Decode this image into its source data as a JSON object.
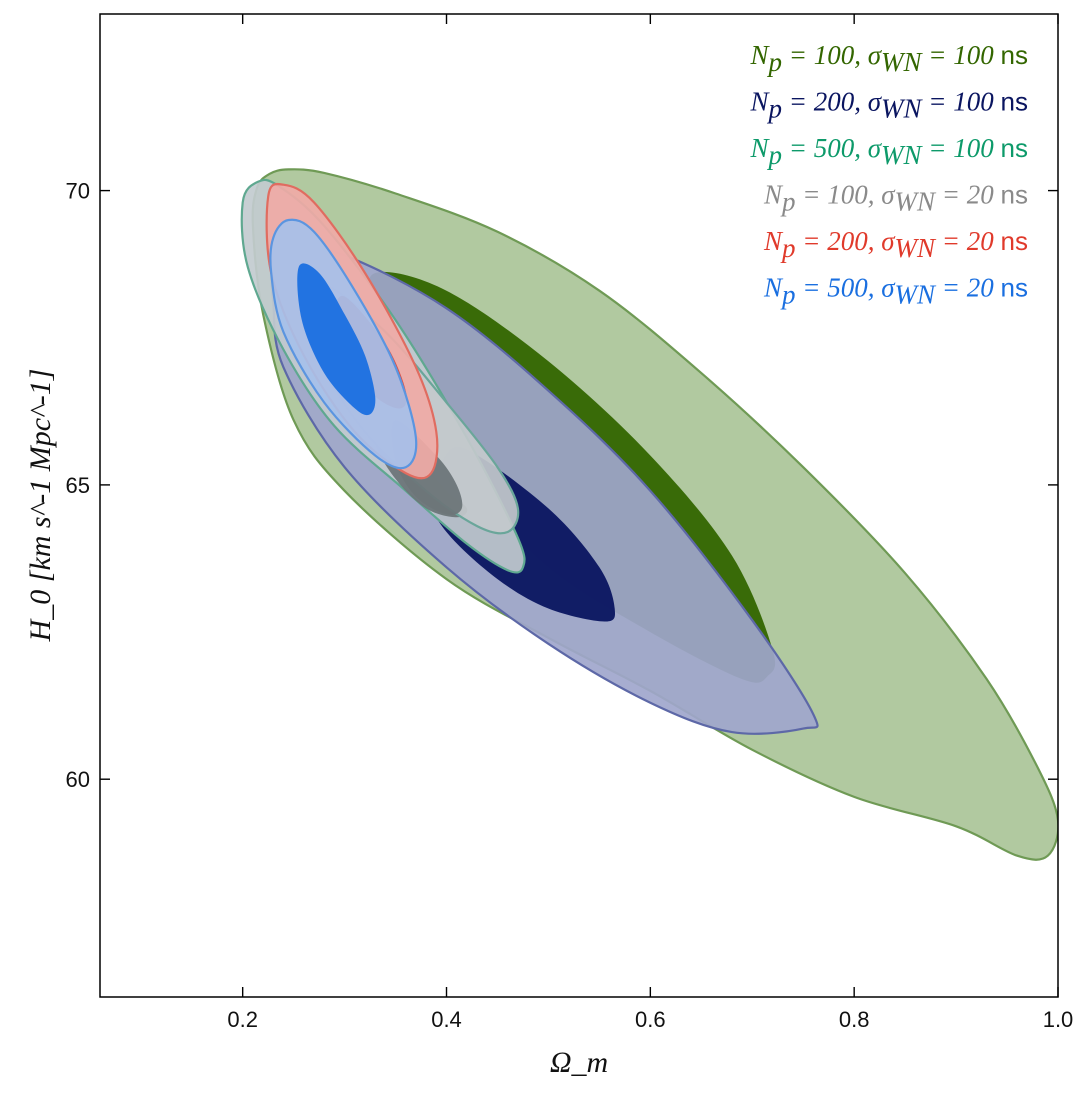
{
  "chart_data": {
    "type": "contour",
    "title": "",
    "xlabel": "Ω_m",
    "ylabel": "H_0 [km s^-1 Mpc^-1]",
    "xlim": [
      0.06,
      1.0
    ],
    "ylim": [
      56.3,
      73.0
    ],
    "x_ticks": [
      0.2,
      0.4,
      0.6,
      0.8,
      1.0
    ],
    "x_tick_labels": [
      "0.2",
      "0.4",
      "0.6",
      "0.8",
      "1.0"
    ],
    "y_ticks": [
      60,
      65,
      70
    ],
    "y_tick_labels": [
      "60",
      "65",
      "70"
    ],
    "legend_position": "top-right",
    "series": [
      {
        "name": "N_p = 100, σ_WN = 100 ns",
        "legend": {
          "N": "100",
          "sigma": "100",
          "unit": "ns"
        },
        "color": "#336600",
        "outer_fill": "#aac498",
        "outer_stroke": "#6f9a55",
        "inner_fill": "#336600",
        "outer_contour": [
          [
            0.214,
            70.04
          ],
          [
            0.226,
            70.28
          ],
          [
            0.245,
            70.36
          ],
          [
            0.28,
            70.3
          ],
          [
            0.35,
            69.95
          ],
          [
            0.45,
            69.3
          ],
          [
            0.55,
            68.3
          ],
          [
            0.65,
            66.9
          ],
          [
            0.75,
            65.3
          ],
          [
            0.85,
            63.5
          ],
          [
            0.93,
            61.7
          ],
          [
            0.98,
            60.2
          ],
          [
            1.0,
            59.3
          ],
          [
            0.99,
            58.7
          ],
          [
            0.96,
            58.7
          ],
          [
            0.9,
            59.2
          ],
          [
            0.8,
            59.7
          ],
          [
            0.7,
            60.5
          ],
          [
            0.6,
            61.5
          ],
          [
            0.5,
            62.4
          ],
          [
            0.4,
            63.4
          ],
          [
            0.3,
            64.9
          ],
          [
            0.25,
            66.1
          ],
          [
            0.22,
            67.9
          ],
          [
            0.21,
            69.4
          ]
        ],
        "inner_contour": [
          [
            0.33,
            68.6
          ],
          [
            0.4,
            68.3
          ],
          [
            0.5,
            67.1
          ],
          [
            0.6,
            65.5
          ],
          [
            0.68,
            63.8
          ],
          [
            0.72,
            62.2
          ],
          [
            0.715,
            61.75
          ],
          [
            0.69,
            61.7
          ],
          [
            0.6,
            62.5
          ],
          [
            0.5,
            63.6
          ],
          [
            0.42,
            65.1
          ],
          [
            0.36,
            66.7
          ],
          [
            0.33,
            67.9
          ]
        ]
      },
      {
        "name": "N_p = 200, σ_WN = 100 ns",
        "legend": {
          "N": "200",
          "sigma": "100",
          "unit": "ns"
        },
        "color": "#0a1560",
        "outer_fill": "#9fa6cc",
        "outer_stroke": "#5d68a7",
        "inner_fill": "#0a1560",
        "outer_contour": [
          [
            0.23,
            68.73
          ],
          [
            0.25,
            69.02
          ],
          [
            0.3,
            68.9
          ],
          [
            0.4,
            68.0
          ],
          [
            0.5,
            66.6
          ],
          [
            0.6,
            64.9
          ],
          [
            0.7,
            62.7
          ],
          [
            0.76,
            61.1
          ],
          [
            0.75,
            60.86
          ],
          [
            0.68,
            60.8
          ],
          [
            0.6,
            61.3
          ],
          [
            0.5,
            62.3
          ],
          [
            0.4,
            63.6
          ],
          [
            0.3,
            65.3
          ],
          [
            0.24,
            67.0
          ],
          [
            0.23,
            68.1
          ]
        ],
        "inner_contour": [
          [
            0.42,
            65.6
          ],
          [
            0.5,
            64.6
          ],
          [
            0.55,
            63.6
          ],
          [
            0.565,
            62.9
          ],
          [
            0.555,
            62.68
          ],
          [
            0.5,
            62.9
          ],
          [
            0.45,
            63.4
          ],
          [
            0.4,
            64.2
          ],
          [
            0.38,
            64.9
          ],
          [
            0.395,
            65.4
          ]
        ]
      },
      {
        "name": "N_p = 500, σ_WN = 100 ns",
        "legend": {
          "N": "500",
          "sigma": "100",
          "unit": "ns"
        },
        "color": "#0d9a6a",
        "outer_fill": "#c2cbcf",
        "outer_stroke": "#5fa890",
        "inner_fill": "#6d7679",
        "outer_contour": [
          [
            0.2,
            69.8
          ],
          [
            0.215,
            70.15
          ],
          [
            0.235,
            70.08
          ],
          [
            0.28,
            69.4
          ],
          [
            0.35,
            67.8
          ],
          [
            0.42,
            65.8
          ],
          [
            0.47,
            64.1
          ],
          [
            0.475,
            63.6
          ],
          [
            0.46,
            63.55
          ],
          [
            0.42,
            64.0
          ],
          [
            0.36,
            64.9
          ],
          [
            0.29,
            66.0
          ],
          [
            0.24,
            67.3
          ],
          [
            0.205,
            68.7
          ]
        ],
        "inner_contour": [
          [
            0.33,
            66.2
          ],
          [
            0.37,
            65.5
          ],
          [
            0.4,
            64.9
          ],
          [
            0.42,
            64.6
          ],
          [
            0.41,
            64.45
          ],
          [
            0.38,
            64.6
          ],
          [
            0.35,
            65.1
          ],
          [
            0.33,
            65.7
          ]
        ]
      },
      {
        "name": "N_p = 100, σ_WN = 20 ns",
        "legend": {
          "N": "100",
          "sigma": "20",
          "unit": "ns"
        },
        "color": "#8a8a8a",
        "outer_fill": "#c3c9cc",
        "outer_stroke": "#6aa69a",
        "inner_fill": "#6d7679",
        "outer_contour": [
          [
            0.28,
            68.4
          ],
          [
            0.34,
            67.6
          ],
          [
            0.4,
            66.4
          ],
          [
            0.45,
            65.3
          ],
          [
            0.47,
            64.6
          ],
          [
            0.46,
            64.2
          ],
          [
            0.43,
            64.3
          ],
          [
            0.38,
            64.9
          ],
          [
            0.32,
            65.9
          ],
          [
            0.28,
            67.0
          ],
          [
            0.27,
            67.9
          ]
        ],
        "inner_contour": [
          [
            0.35,
            66.1
          ],
          [
            0.39,
            65.5
          ],
          [
            0.41,
            65.0
          ],
          [
            0.415,
            64.6
          ],
          [
            0.4,
            64.5
          ],
          [
            0.37,
            64.8
          ],
          [
            0.35,
            65.4
          ]
        ]
      },
      {
        "name": "N_p = 200, σ_WN = 20 ns",
        "legend": {
          "N": "200",
          "sigma": "20",
          "unit": "ns"
        },
        "color": "#e03a2b",
        "outer_fill": "#f0aaa6",
        "outer_stroke": "#e06c60",
        "inner_fill": "#d84a40",
        "outer_contour": [
          [
            0.225,
            69.9
          ],
          [
            0.24,
            70.1
          ],
          [
            0.27,
            69.8
          ],
          [
            0.32,
            68.6
          ],
          [
            0.37,
            67.0
          ],
          [
            0.39,
            65.9
          ],
          [
            0.385,
            65.2
          ],
          [
            0.36,
            65.2
          ],
          [
            0.31,
            65.9
          ],
          [
            0.26,
            67.2
          ],
          [
            0.228,
            68.6
          ]
        ],
        "inner_contour": [
          [
            0.3,
            68.2
          ],
          [
            0.34,
            67.4
          ],
          [
            0.36,
            66.6
          ],
          [
            0.355,
            66.3
          ],
          [
            0.33,
            66.5
          ],
          [
            0.3,
            67.1
          ],
          [
            0.29,
            67.8
          ]
        ]
      },
      {
        "name": "N_p = 500, σ_WN = 20 ns",
        "legend": {
          "N": "500",
          "sigma": "20",
          "unit": "ns"
        },
        "color": "#1a6fe0",
        "outer_fill": "#a6c0ea",
        "outer_stroke": "#5b95e0",
        "inner_fill": "#1a6fe0",
        "outer_contour": [
          [
            0.23,
            69.2
          ],
          [
            0.245,
            69.5
          ],
          [
            0.27,
            69.3
          ],
          [
            0.31,
            68.3
          ],
          [
            0.35,
            67.0
          ],
          [
            0.37,
            65.8
          ],
          [
            0.36,
            65.3
          ],
          [
            0.33,
            65.5
          ],
          [
            0.28,
            66.4
          ],
          [
            0.24,
            67.6
          ],
          [
            0.228,
            68.6
          ]
        ],
        "inner_contour": [
          [
            0.255,
            68.7
          ],
          [
            0.275,
            68.6
          ],
          [
            0.3,
            67.9
          ],
          [
            0.32,
            67.2
          ],
          [
            0.33,
            66.5
          ],
          [
            0.325,
            66.2
          ],
          [
            0.31,
            66.3
          ],
          [
            0.28,
            66.9
          ],
          [
            0.258,
            67.8
          ]
        ]
      }
    ],
    "draw_order": [
      0,
      1,
      2,
      3,
      4,
      5
    ]
  }
}
